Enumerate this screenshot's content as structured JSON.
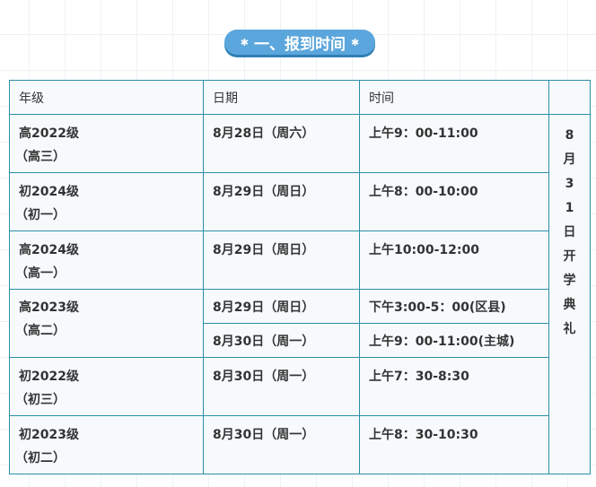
{
  "section_title": "一、报到时间",
  "badge_icon": "star-icon",
  "colors": {
    "badge": "#5ba6dc",
    "border": "#2a8fa8"
  },
  "table": {
    "headers": [
      "年级",
      "日期",
      "时间",
      ""
    ],
    "side_note": "8月31日开学典礼",
    "rows": [
      {
        "grade": "高2022级",
        "grade_sub": "（高三）",
        "date": "8月28日（周六）",
        "time": "上午9：00-11:00"
      },
      {
        "grade": "初2024级",
        "grade_sub": "（初一）",
        "date": "8月29日（周日）",
        "time": "上午8：00-10:00"
      },
      {
        "grade": "高2024级",
        "grade_sub": "（高一）",
        "date": "8月29日（周日）",
        "time": "上午10:00-12:00"
      },
      {
        "grade": "高2023级",
        "grade_sub": "（高二）",
        "date": "8月29日（周日）",
        "time": "下午3:00-5：00(区县)",
        "date2": "8月30日（周一）",
        "time2": "上午9：00-11:00(主城)"
      },
      {
        "grade": "初2022级",
        "grade_sub": "（初三）",
        "date": "8月30日（周一）",
        "time": "上午7：30-8:30"
      },
      {
        "grade": "初2023级",
        "grade_sub": "（初二）",
        "date": "8月30日（周一）",
        "time": "上午8：30-10:30"
      }
    ]
  }
}
